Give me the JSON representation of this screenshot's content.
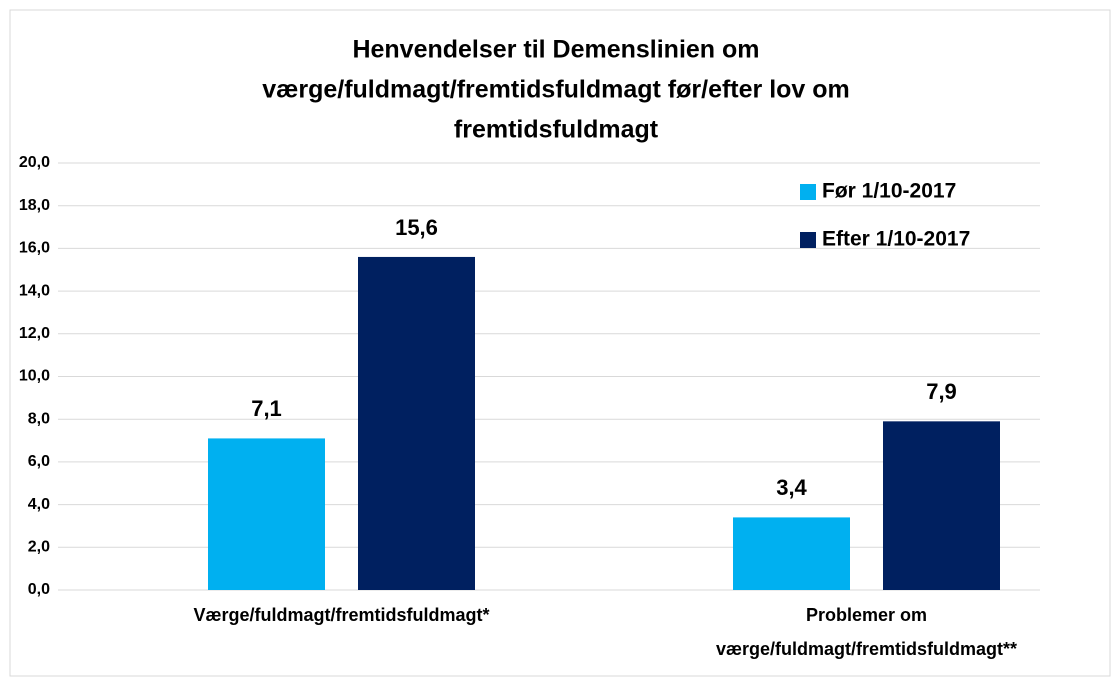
{
  "chart_data": {
    "type": "bar",
    "title": [
      "Henvendelser til Demenslinien om",
      "værge/fuldmagt/fremtidsfuldmagt før/efter lov om",
      "fremtidsfuldmagt"
    ],
    "categories": [
      "Værge/fuldmagt/fremtidsfuldmagt*",
      "Problemer om\nværge/fuldmagt/fremtidsfuldmagt**"
    ],
    "series": [
      {
        "name": "Før 1/10-2017",
        "color": "#00b0f0",
        "values": [
          7.1,
          3.4
        ],
        "value_labels": [
          "7,1",
          "3,4"
        ]
      },
      {
        "name": "Efter 1/10-2017",
        "color": "#002060",
        "values": [
          15.6,
          7.9
        ],
        "value_labels": [
          "15,6",
          "7,9"
        ]
      }
    ],
    "ylim": [
      0,
      20
    ],
    "yticks": [
      {
        "value": 0,
        "label": "0,0"
      },
      {
        "value": 2,
        "label": "2,0"
      },
      {
        "value": 4,
        "label": "4,0"
      },
      {
        "value": 6,
        "label": "6,0"
      },
      {
        "value": 8,
        "label": "8,0"
      },
      {
        "value": 10,
        "label": "10,0"
      },
      {
        "value": 12,
        "label": "12,0"
      },
      {
        "value": 14,
        "label": "14,0"
      },
      {
        "value": 16,
        "label": "16,0"
      },
      {
        "value": 18,
        "label": "18,0"
      },
      {
        "value": 20,
        "label": "20,0"
      }
    ],
    "grid": true,
    "legend": "top-right"
  }
}
